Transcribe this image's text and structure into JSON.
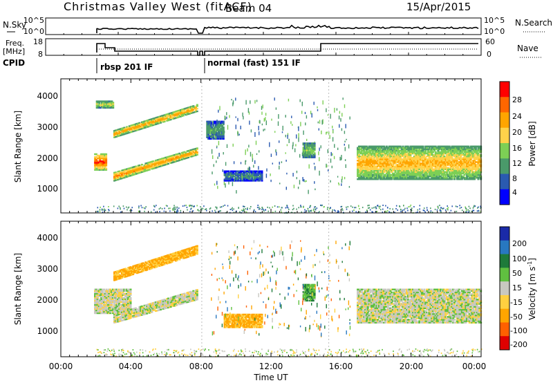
{
  "header": {
    "title": "Christmas Valley West (fitACF)",
    "beam": "Beam 04",
    "date": "15/Apr/2015"
  },
  "panels": {
    "nsky": {
      "left_label": "N.Sky",
      "left_ticks": [
        "10^5",
        "10^0"
      ],
      "right_ticks": [
        "10^5",
        "10^0"
      ],
      "right_label": "N.Search"
    },
    "freq": {
      "left_label_1": "Freq.",
      "left_label_2": "[MHz]",
      "left_ticks": [
        "18",
        "8"
      ],
      "right_ticks": [
        "60",
        "0"
      ],
      "right_label": "Nave"
    },
    "cpid": {
      "label": "CPID",
      "modes": [
        {
          "start_hour": 2.0,
          "label": "rbsp 201 IF"
        },
        {
          "start_hour": 8.1,
          "label": "normal (fast) 151 IF"
        }
      ]
    }
  },
  "axes": {
    "ylabel": "Slant Range [km]",
    "yticks": [
      "1000",
      "2000",
      "3000",
      "4000"
    ],
    "xticks": [
      "00:00",
      "04:00",
      "08:00",
      "12:00",
      "16:00",
      "20:00",
      "00:00"
    ],
    "xlabel": "Time UT"
  },
  "colorbars": {
    "power": {
      "label": "Power [dB]",
      "ticks": [
        "28",
        "24",
        "20",
        "16",
        "12",
        "8",
        "4"
      ],
      "colors": [
        "#ff0000",
        "#ff6600",
        "#ffa500",
        "#ffd24a",
        "#7dcf55",
        "#4a9a6a",
        "#2a5ab0",
        "#0000ff"
      ]
    },
    "velocity": {
      "label": "Velocity [m s",
      "label_sup": "-1",
      "label_end": "]",
      "ticks": [
        "200",
        "100",
        "50",
        "15",
        "-15",
        "-50",
        "-100",
        "-200"
      ],
      "colors": [
        "#1a2aa8",
        "#2878c0",
        "#1e7a3a",
        "#60c040",
        "#c8c8c0",
        "#ffd040",
        "#ffa500",
        "#ff6000",
        "#e00000"
      ]
    }
  },
  "chart_data": [
    {
      "type": "heatmap",
      "title": "Power",
      "xlabel": "Time UT",
      "ylabel": "Slant Range [km]",
      "xlim": [
        0,
        24
      ],
      "ylim": [
        180,
        4500
      ],
      "colorbar": "Power [dB]",
      "colorbar_range": [
        0,
        30
      ],
      "echo_regions": [
        {
          "start_hour": 1.9,
          "end_hour": 2.6,
          "range_km": [
            1550,
            2100
          ],
          "power_db": 28
        },
        {
          "start_hour": 2.0,
          "end_hour": 3.0,
          "range_km": [
            3550,
            3800
          ],
          "power_db": 18
        },
        {
          "start_hour": 3.0,
          "end_hour": 7.8,
          "range_km_start": [
            2600,
            2850
          ],
          "range_km_end": [
            3450,
            3700
          ],
          "power_db": 24
        },
        {
          "start_hour": 3.0,
          "end_hour": 7.8,
          "range_km_start": [
            1200,
            1500
          ],
          "range_km_end": [
            2050,
            2300
          ],
          "power_db": 25
        },
        {
          "start_hour": 8.3,
          "end_hour": 9.3,
          "range_km": [
            2550,
            3150
          ],
          "power_db": 10
        },
        {
          "start_hour": 9.3,
          "end_hour": 11.5,
          "range_km": [
            1200,
            1550
          ],
          "power_db": 8
        },
        {
          "start_hour": 13.8,
          "end_hour": 14.5,
          "range_km": [
            1950,
            2450
          ],
          "power_db": 14
        },
        {
          "start_hour": 16.9,
          "end_hour": 24.0,
          "range_km": [
            1250,
            2350
          ],
          "power_db": 20
        }
      ]
    },
    {
      "type": "heatmap",
      "title": "Velocity",
      "xlabel": "Time UT",
      "ylabel": "Slant Range [km]",
      "xlim": [
        0,
        24
      ],
      "ylim": [
        180,
        4500
      ],
      "colorbar": "Velocity [m s-1]",
      "colorbar_range": [
        -250,
        250
      ],
      "echo_regions": [
        {
          "start_hour": 1.9,
          "end_hour": 4.0,
          "range_km": [
            1550,
            2350
          ],
          "velocity_ms": 0
        },
        {
          "start_hour": 3.0,
          "end_hour": 7.8,
          "range_km_start": [
            2600,
            2900
          ],
          "range_km_end": [
            3450,
            3750
          ],
          "velocity_ms": -60
        },
        {
          "start_hour": 3.0,
          "end_hour": 7.8,
          "range_km_start": [
            1250,
            1550
          ],
          "range_km_end": [
            2000,
            2350
          ],
          "velocity_ms": 0
        },
        {
          "start_hour": 9.3,
          "end_hour": 11.5,
          "range_km": [
            1100,
            1550
          ],
          "velocity_ms": -60
        },
        {
          "start_hour": 13.8,
          "end_hour": 14.5,
          "range_km": [
            1950,
            2500
          ],
          "velocity_ms": 40
        },
        {
          "start_hour": 16.9,
          "end_hour": 24.0,
          "range_km": [
            1250,
            2350
          ],
          "velocity_ms": 0
        }
      ]
    }
  ]
}
